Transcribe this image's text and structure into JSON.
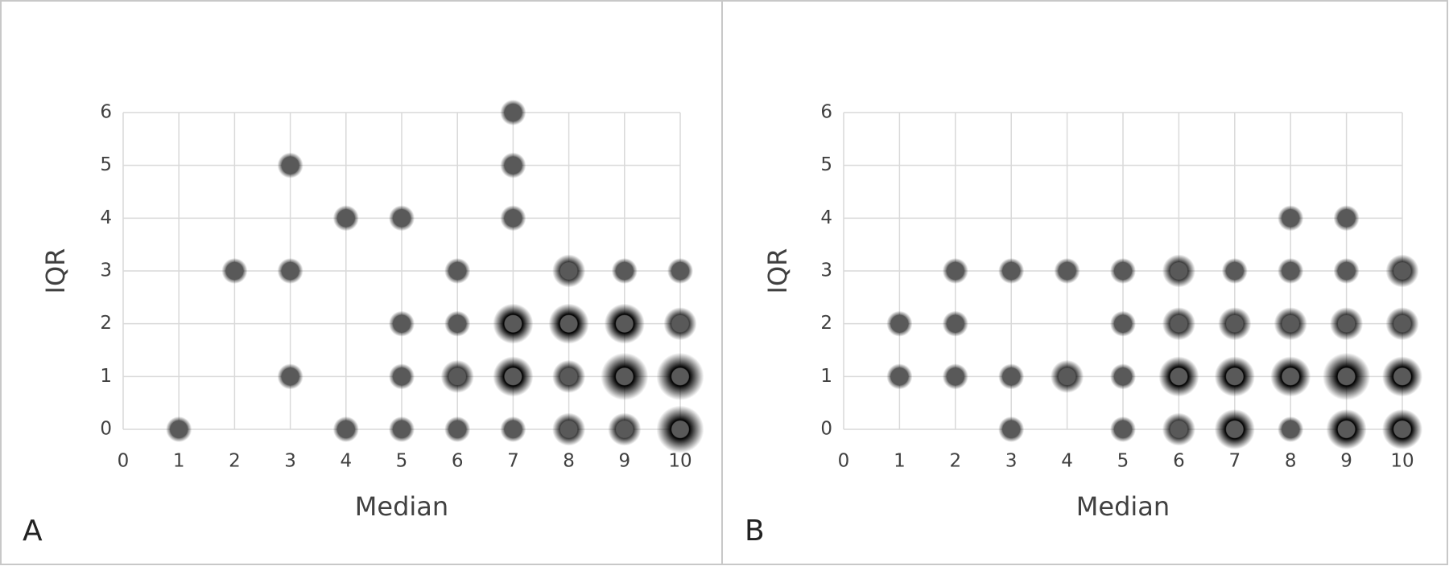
{
  "chart_data": [
    {
      "type": "scatter",
      "panel": "A",
      "x_label": "Median",
      "y_label": "IQR",
      "xlim": [
        0,
        10
      ],
      "ylim": [
        0,
        6
      ],
      "xticks": [
        0,
        1,
        2,
        3,
        4,
        5,
        6,
        7,
        8,
        9,
        10
      ],
      "yticks": [
        0,
        1,
        2,
        3,
        4,
        5,
        6
      ],
      "grid": true,
      "series": [
        {
          "color": "#595959",
          "x": [
            1,
            2,
            3,
            3,
            3,
            4,
            4,
            5,
            5,
            5,
            5,
            6,
            6,
            6,
            6,
            7,
            7,
            7,
            7,
            7,
            7,
            8,
            8,
            8,
            8,
            9,
            9,
            9,
            9,
            10,
            10,
            10,
            10
          ],
          "values": [
            0,
            3,
            5,
            3,
            1,
            4,
            0,
            4,
            2,
            1,
            0,
            3,
            2,
            1,
            0,
            6,
            5,
            4,
            2,
            1,
            0,
            3,
            2,
            1,
            0,
            3,
            2,
            1,
            0,
            3,
            2,
            1,
            0
          ],
          "sizes": [
            1,
            1,
            1,
            1,
            1,
            1,
            1,
            1,
            1,
            1,
            1,
            1,
            1,
            2,
            1,
            1,
            1,
            1,
            3,
            3,
            1,
            2,
            3,
            2,
            2,
            1,
            3,
            4,
            2,
            1,
            2,
            4,
            4
          ]
        }
      ]
    },
    {
      "type": "scatter",
      "panel": "B",
      "x_label": "Median",
      "y_label": "IQR",
      "xlim": [
        0,
        10
      ],
      "ylim": [
        0,
        6
      ],
      "xticks": [
        0,
        1,
        2,
        3,
        4,
        5,
        6,
        7,
        8,
        9,
        10
      ],
      "yticks": [
        0,
        1,
        2,
        3,
        4,
        5,
        6
      ],
      "grid": true,
      "series": [
        {
          "color": "#595959",
          "x": [
            1,
            1,
            2,
            2,
            2,
            3,
            3,
            3,
            4,
            4,
            5,
            5,
            5,
            5,
            6,
            6,
            6,
            6,
            7,
            7,
            7,
            7,
            8,
            8,
            8,
            8,
            8,
            9,
            9,
            9,
            9,
            9,
            10,
            10,
            10,
            10
          ],
          "values": [
            2,
            1,
            3,
            2,
            1,
            3,
            1,
            0,
            3,
            1,
            3,
            2,
            1,
            0,
            3,
            2,
            1,
            0,
            3,
            2,
            1,
            0,
            4,
            3,
            2,
            1,
            0,
            4,
            3,
            2,
            1,
            0,
            3,
            2,
            1,
            0
          ],
          "sizes": [
            1,
            1,
            1,
            1,
            1,
            1,
            1,
            1,
            1,
            2,
            1,
            1,
            1,
            1,
            2,
            2,
            3,
            2,
            1,
            2,
            3,
            3,
            1,
            1,
            2,
            3,
            1,
            1,
            1,
            2,
            4,
            3,
            2,
            2,
            3,
            3
          ]
        }
      ]
    }
  ]
}
